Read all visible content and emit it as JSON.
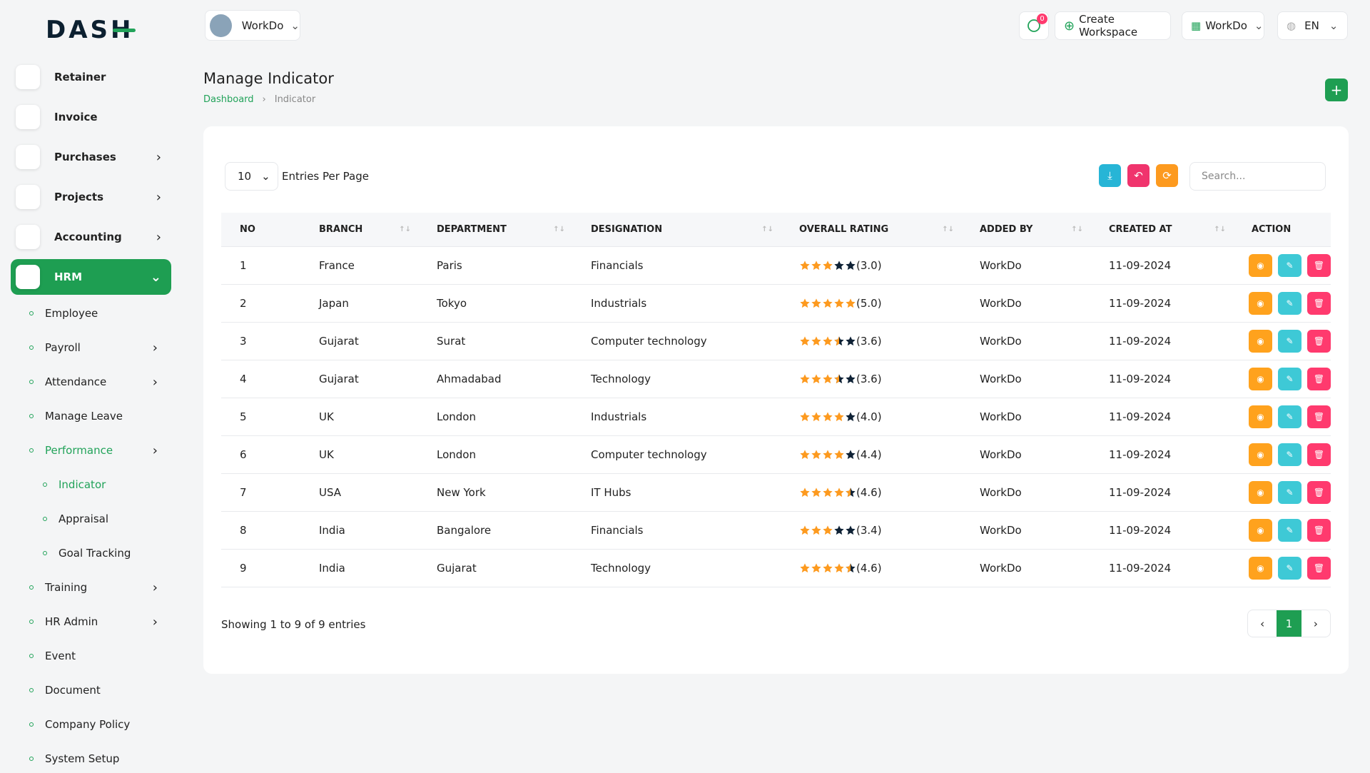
{
  "header": {
    "logo": "DASH",
    "workspace": "WorkDo",
    "notification_count": 0,
    "create_workspace": "Create Workspace",
    "user": "WorkDo",
    "language": "EN"
  },
  "sidebar": {
    "items": [
      {
        "label": "Retainer",
        "level": 0,
        "arrow": false
      },
      {
        "label": "Invoice",
        "level": 0,
        "arrow": false
      },
      {
        "label": "Purchases",
        "level": 0,
        "arrow": true
      },
      {
        "label": "Projects",
        "level": 0,
        "arrow": true
      },
      {
        "label": "Accounting",
        "level": 0,
        "arrow": true
      },
      {
        "label": "HRM",
        "level": 0,
        "arrow": true,
        "state": "active"
      },
      {
        "label": "Employee",
        "level": 1,
        "arrow": false
      },
      {
        "label": "Payroll",
        "level": 1,
        "arrow": true
      },
      {
        "label": "Attendance",
        "level": 1,
        "arrow": true
      },
      {
        "label": "Manage Leave",
        "level": 1,
        "arrow": false
      },
      {
        "label": "Performance",
        "level": 1,
        "arrow": true,
        "state": "open"
      },
      {
        "label": "Indicator",
        "level": 2,
        "arrow": false,
        "state": "current"
      },
      {
        "label": "Appraisal",
        "level": 2,
        "arrow": false
      },
      {
        "label": "Goal Tracking",
        "level": 2,
        "arrow": false
      },
      {
        "label": "Training",
        "level": 1,
        "arrow": true
      },
      {
        "label": "HR Admin",
        "level": 1,
        "arrow": true
      },
      {
        "label": "Event",
        "level": 1,
        "arrow": false
      },
      {
        "label": "Document",
        "level": 1,
        "arrow": false
      },
      {
        "label": "Company Policy",
        "level": 1,
        "arrow": false
      },
      {
        "label": "System Setup",
        "level": 1,
        "arrow": false
      }
    ]
  },
  "page": {
    "title": "Manage Indicator",
    "breadcrumb": [
      "Dashboard",
      "Indicator"
    ]
  },
  "table": {
    "entries_per_page": 10,
    "entries_label": "Entries Per Page",
    "search_placeholder": "Search...",
    "columns": [
      "NO",
      "BRANCH",
      "DEPARTMENT",
      "DESIGNATION",
      "OVERALL RATING",
      "ADDED BY",
      "CREATED AT",
      "ACTION"
    ],
    "rows": [
      {
        "no": 1,
        "branch": "France",
        "department": "Paris",
        "designation": "Financials",
        "rating": 3.0,
        "rating_label": "(3.0)",
        "added_by": "WorkDo",
        "created_at": "11-09-2024"
      },
      {
        "no": 2,
        "branch": "Japan",
        "department": "Tokyo",
        "designation": "Industrials",
        "rating": 5.0,
        "rating_label": "(5.0)",
        "added_by": "WorkDo",
        "created_at": "11-09-2024"
      },
      {
        "no": 3,
        "branch": "Gujarat",
        "department": "Surat",
        "designation": "Computer technology",
        "rating": 3.6,
        "rating_label": "(3.6)",
        "added_by": "WorkDo",
        "created_at": "11-09-2024"
      },
      {
        "no": 4,
        "branch": "Gujarat",
        "department": "Ahmadabad",
        "designation": "Technology",
        "rating": 3.6,
        "rating_label": "(3.6)",
        "added_by": "WorkDo",
        "created_at": "11-09-2024"
      },
      {
        "no": 5,
        "branch": "UK",
        "department": "London",
        "designation": "Industrials",
        "rating": 4.0,
        "rating_label": "(4.0)",
        "added_by": "WorkDo",
        "created_at": "11-09-2024"
      },
      {
        "no": 6,
        "branch": "UK",
        "department": "London",
        "designation": "Computer technology",
        "rating": 4.4,
        "rating_label": "(4.4)",
        "added_by": "WorkDo",
        "created_at": "11-09-2024"
      },
      {
        "no": 7,
        "branch": "USA",
        "department": "New York",
        "designation": "IT Hubs",
        "rating": 4.6,
        "rating_label": "(4.6)",
        "added_by": "WorkDo",
        "created_at": "11-09-2024"
      },
      {
        "no": 8,
        "branch": "India",
        "department": "Bangalore",
        "designation": "Financials",
        "rating": 3.4,
        "rating_label": "(3.4)",
        "added_by": "WorkDo",
        "created_at": "11-09-2024"
      },
      {
        "no": 9,
        "branch": "India",
        "department": "Gujarat",
        "designation": "Technology",
        "rating": 4.6,
        "rating_label": "(4.6)",
        "added_by": "WorkDo",
        "created_at": "11-09-2024"
      }
    ],
    "footer": "Showing 1 to 9 of 9 entries",
    "current_page": 1
  }
}
